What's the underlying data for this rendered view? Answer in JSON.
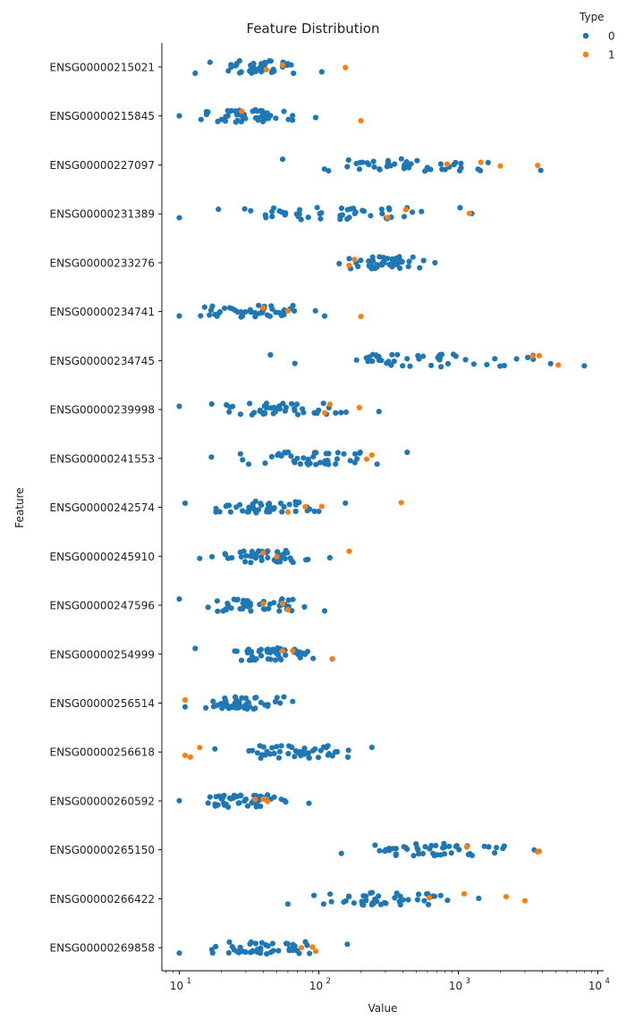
{
  "chart_data": {
    "type": "scatter",
    "subtype": "strip",
    "title": "Feature Distribution",
    "xlabel": "Value",
    "ylabel": "Feature",
    "x_scale": "log",
    "xlim": [
      7.5,
      11000
    ],
    "x_ticks": [
      10,
      100,
      1000,
      10000
    ],
    "x_tick_labels": [
      "10",
      "10",
      "10",
      "10"
    ],
    "x_tick_exponents": [
      "1",
      "2",
      "3",
      "4"
    ],
    "grid": false,
    "legend": {
      "title": "Type",
      "placement": "top-right",
      "entries": [
        "0",
        "1"
      ]
    },
    "colors": {
      "0": "#1f77b4",
      "1": "#ff7f0e"
    },
    "categories": [
      "ENSG00000215021",
      "ENSG00000215845",
      "ENSG00000227097",
      "ENSG00000231389",
      "ENSG00000233276",
      "ENSG00000234741",
      "ENSG00000234745",
      "ENSG00000239998",
      "ENSG00000241553",
      "ENSG00000242574",
      "ENSG00000245910",
      "ENSG00000247596",
      "ENSG00000254999",
      "ENSG00000256514",
      "ENSG00000256618",
      "ENSG00000260592",
      "ENSG00000265150",
      "ENSG00000266422",
      "ENSG00000269858"
    ],
    "series": [
      {
        "name": "0",
        "ranges": [
          [
            13,
            105
          ],
          [
            10,
            95
          ],
          [
            55,
            3900
          ],
          [
            10,
            1250
          ],
          [
            140,
            680
          ],
          [
            10,
            110
          ],
          [
            45,
            8000
          ],
          [
            10,
            270
          ],
          [
            17,
            430
          ],
          [
            11,
            155
          ],
          [
            14,
            120
          ],
          [
            10,
            110
          ],
          [
            13,
            125
          ],
          [
            11,
            65
          ],
          [
            18,
            240
          ],
          [
            10,
            85
          ],
          [
            145,
            3500
          ],
          [
            60,
            1400
          ],
          [
            10,
            160
          ]
        ],
        "counts": [
          48,
          50,
          48,
          50,
          48,
          48,
          50,
          48,
          48,
          48,
          48,
          48,
          48,
          48,
          48,
          48,
          48,
          48,
          48
        ]
      },
      {
        "name": "1",
        "points": [
          {
            "feature": "ENSG00000215021",
            "value": 155
          },
          {
            "feature": "ENSG00000215021",
            "value": 55
          },
          {
            "feature": "ENSG00000215021",
            "value": 42
          },
          {
            "feature": "ENSG00000215845",
            "value": 200
          },
          {
            "feature": "ENSG00000215845",
            "value": 28
          },
          {
            "feature": "ENSG00000227097",
            "value": 3700
          },
          {
            "feature": "ENSG00000227097",
            "value": 1450
          },
          {
            "feature": "ENSG00000227097",
            "value": 2000
          },
          {
            "feature": "ENSG00000227097",
            "value": 830
          },
          {
            "feature": "ENSG00000231389",
            "value": 1200
          },
          {
            "feature": "ENSG00000231389",
            "value": 420
          },
          {
            "feature": "ENSG00000231389",
            "value": 310
          },
          {
            "feature": "ENSG00000233276",
            "value": 165
          },
          {
            "feature": "ENSG00000233276",
            "value": 180
          },
          {
            "feature": "ENSG00000234741",
            "value": 200
          },
          {
            "feature": "ENSG00000234741",
            "value": 60
          },
          {
            "feature": "ENSG00000234741",
            "value": 40
          },
          {
            "feature": "ENSG00000234745",
            "value": 5200
          },
          {
            "feature": "ENSG00000234745",
            "value": 3800
          },
          {
            "feature": "ENSG00000234745",
            "value": 3400
          },
          {
            "feature": "ENSG00000239998",
            "value": 195
          },
          {
            "feature": "ENSG00000239998",
            "value": 110
          },
          {
            "feature": "ENSG00000239998",
            "value": 120
          },
          {
            "feature": "ENSG00000241553",
            "value": 220
          },
          {
            "feature": "ENSG00000241553",
            "value": 240
          },
          {
            "feature": "ENSG00000242574",
            "value": 390
          },
          {
            "feature": "ENSG00000242574",
            "value": 105
          },
          {
            "feature": "ENSG00000242574",
            "value": 80
          },
          {
            "feature": "ENSG00000242574",
            "value": 60
          },
          {
            "feature": "ENSG00000245910",
            "value": 165
          },
          {
            "feature": "ENSG00000245910",
            "value": 50
          },
          {
            "feature": "ENSG00000245910",
            "value": 40
          },
          {
            "feature": "ENSG00000247596",
            "value": 40
          },
          {
            "feature": "ENSG00000247596",
            "value": 60
          },
          {
            "feature": "ENSG00000247596",
            "value": 55
          },
          {
            "feature": "ENSG00000254999",
            "value": 125
          },
          {
            "feature": "ENSG00000254999",
            "value": 55
          },
          {
            "feature": "ENSG00000254999",
            "value": 65
          },
          {
            "feature": "ENSG00000256514",
            "value": 11
          },
          {
            "feature": "ENSG00000256618",
            "value": 11
          },
          {
            "feature": "ENSG00000256618",
            "value": 14
          },
          {
            "feature": "ENSG00000256618",
            "value": 12
          },
          {
            "feature": "ENSG00000260592",
            "value": 40
          },
          {
            "feature": "ENSG00000260592",
            "value": 35
          },
          {
            "feature": "ENSG00000260592",
            "value": 43
          },
          {
            "feature": "ENSG00000265150",
            "value": 3800
          },
          {
            "feature": "ENSG00000265150",
            "value": 3700
          },
          {
            "feature": "ENSG00000265150",
            "value": 1150
          },
          {
            "feature": "ENSG00000266422",
            "value": 2200
          },
          {
            "feature": "ENSG00000266422",
            "value": 3000
          },
          {
            "feature": "ENSG00000266422",
            "value": 1100
          },
          {
            "feature": "ENSG00000266422",
            "value": 620
          },
          {
            "feature": "ENSG00000269858",
            "value": 75
          },
          {
            "feature": "ENSG00000269858",
            "value": 90
          },
          {
            "feature": "ENSG00000269858",
            "value": 95
          }
        ]
      }
    ]
  }
}
